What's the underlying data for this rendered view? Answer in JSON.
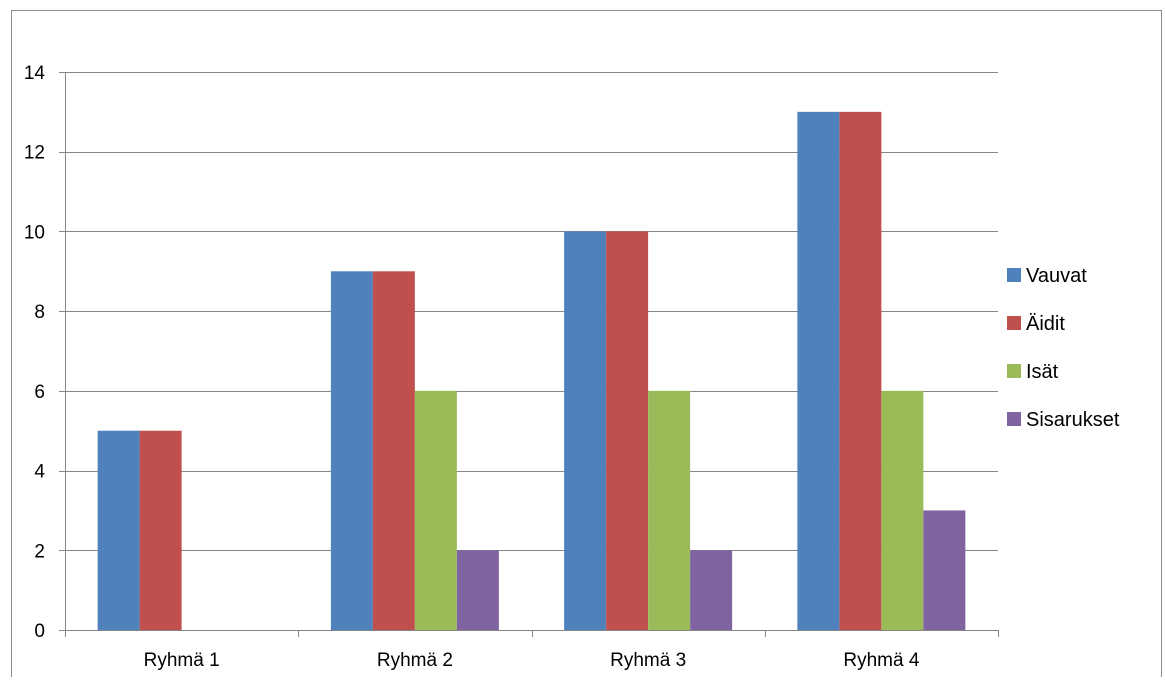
{
  "chart_data": {
    "type": "bar",
    "categories": [
      "Ryhmä 1",
      "Ryhmä 2",
      "Ryhmä 3",
      "Ryhmä 4"
    ],
    "series": [
      {
        "name": "Vauvat",
        "values": [
          5,
          9,
          10,
          13
        ]
      },
      {
        "name": "Äidit",
        "values": [
          5,
          9,
          10,
          13
        ]
      },
      {
        "name": "Isät",
        "values": [
          0,
          6,
          6,
          6
        ]
      },
      {
        "name": "Sisarukset",
        "values": [
          0,
          2,
          2,
          3
        ]
      }
    ],
    "title": "",
    "xlabel": "",
    "ylabel": "",
    "ylim": [
      0,
      14
    ],
    "yticks": [
      0,
      2,
      4,
      6,
      8,
      10,
      12,
      14
    ],
    "grid": true,
    "legend": "right",
    "colors": [
      "#4F81BD",
      "#C0504D",
      "#9BBB59",
      "#8064A2"
    ],
    "grid_color": "#868686"
  }
}
